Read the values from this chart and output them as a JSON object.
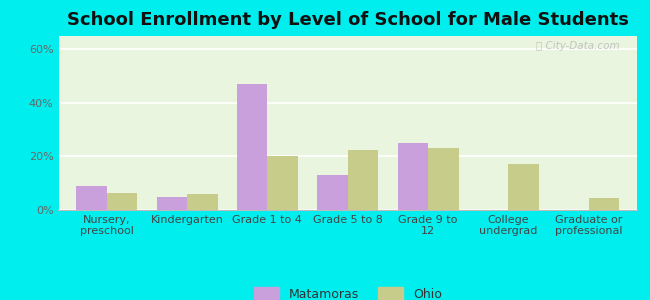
{
  "title": "School Enrollment by Level of School for Male Students",
  "categories": [
    "Nursery,\npreschool",
    "Kindergarten",
    "Grade 1 to 4",
    "Grade 5 to 8",
    "Grade 9 to\n12",
    "College\nundergrad",
    "Graduate or\nprofessional"
  ],
  "matamoras": [
    9.0,
    5.0,
    47.0,
    13.0,
    25.0,
    0.0,
    0.0
  ],
  "ohio": [
    6.5,
    6.0,
    20.0,
    22.5,
    23.0,
    17.0,
    4.5
  ],
  "bar_color_matamoras": "#c9a0dc",
  "bar_color_ohio": "#c8cc8a",
  "background_color": "#00eeee",
  "plot_bg_color": "#eaf5e0",
  "ylim": [
    0,
    65
  ],
  "yticks": [
    0,
    20,
    40,
    60
  ],
  "ytick_labels": [
    "0%",
    "20%",
    "40%",
    "60%"
  ],
  "title_fontsize": 13,
  "tick_fontsize": 8,
  "legend_labels": [
    "Matamoras",
    "Ohio"
  ],
  "bar_width": 0.38
}
